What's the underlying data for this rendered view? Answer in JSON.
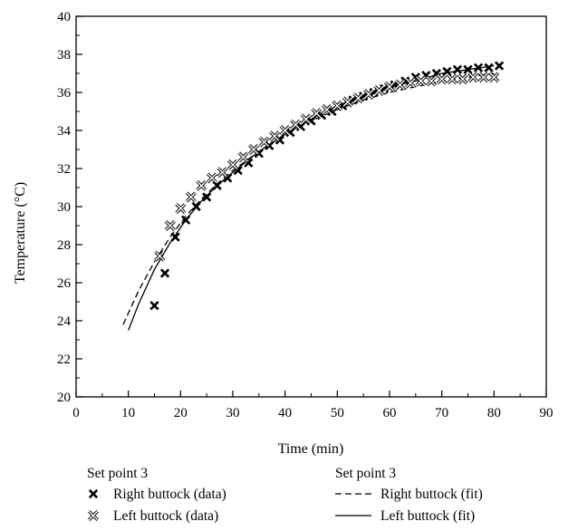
{
  "chart_data": {
    "type": "scatter",
    "xlabel": "Time (min)",
    "ylabel": "Temperature (°C)",
    "xlim": [
      0,
      90
    ],
    "ylim": [
      20,
      40
    ],
    "x_ticks": [
      "0",
      "10",
      "20",
      "30",
      "40",
      "50",
      "60",
      "70",
      "80",
      "90"
    ],
    "y_ticks": [
      "20",
      "22",
      "24",
      "26",
      "28",
      "30",
      "32",
      "34",
      "36",
      "38",
      "40"
    ],
    "grid": false,
    "legend_position": "bottom",
    "legend": {
      "left_title": "Set point 3",
      "right_title": "Set point 3"
    },
    "series": [
      {
        "name": "Right buttock (data)",
        "kind": "points",
        "marker": "bold-x",
        "x": [
          15,
          17,
          19,
          21,
          23,
          25,
          27,
          29,
          31,
          33,
          35,
          37,
          39,
          41,
          43,
          45,
          47,
          49,
          51,
          53,
          55,
          57,
          59,
          61,
          63,
          65,
          67,
          69,
          71,
          73,
          75,
          77,
          79,
          81
        ],
        "y": [
          24.8,
          26.5,
          28.4,
          29.3,
          30.0,
          30.5,
          31.1,
          31.5,
          31.9,
          32.3,
          32.8,
          33.2,
          33.5,
          33.9,
          34.2,
          34.5,
          34.8,
          35.0,
          35.3,
          35.6,
          35.8,
          36.0,
          36.2,
          36.4,
          36.6,
          36.8,
          36.9,
          37.0,
          37.1,
          37.2,
          37.2,
          37.3,
          37.3,
          37.4
        ]
      },
      {
        "name": "Left buttock (data)",
        "kind": "points",
        "marker": "hollow-x",
        "x": [
          16,
          18,
          20,
          22,
          24,
          26,
          28,
          30,
          32,
          34,
          36,
          38,
          40,
          42,
          44,
          46,
          48,
          50,
          52,
          54,
          56,
          58,
          60,
          62,
          64,
          66,
          68,
          70,
          72,
          74,
          76,
          78,
          80
        ],
        "y": [
          27.4,
          29.0,
          29.9,
          30.5,
          31.1,
          31.5,
          31.8,
          32.2,
          32.6,
          33.0,
          33.4,
          33.7,
          34.0,
          34.3,
          34.6,
          34.9,
          35.1,
          35.3,
          35.5,
          35.7,
          35.9,
          36.1,
          36.3,
          36.4,
          36.5,
          36.6,
          36.6,
          36.7,
          36.7,
          36.7,
          36.8,
          36.8,
          36.8
        ]
      },
      {
        "name": "Right buttock (fit)",
        "kind": "line",
        "dash": "dashed",
        "x": [
          9,
          12,
          15,
          18,
          21,
          24,
          27,
          30,
          35,
          40,
          45,
          50,
          55,
          60,
          65,
          70,
          75,
          80
        ],
        "y": [
          23.8,
          25.6,
          27.1,
          28.4,
          29.5,
          30.4,
          31.2,
          31.9,
          32.9,
          33.8,
          34.5,
          35.1,
          35.6,
          36.0,
          36.3,
          36.6,
          36.8,
          37.0
        ]
      },
      {
        "name": "Left buttock (fit)",
        "kind": "line",
        "dash": "solid",
        "x": [
          10,
          12,
          15,
          18,
          21,
          24,
          27,
          30,
          35,
          40,
          45,
          50,
          55,
          60,
          65,
          70,
          75,
          80
        ],
        "y": [
          23.5,
          24.9,
          26.7,
          28.1,
          29.3,
          30.3,
          31.1,
          31.8,
          32.9,
          33.8,
          34.6,
          35.3,
          35.8,
          36.3,
          36.6,
          37.0,
          37.2,
          37.4
        ]
      }
    ]
  }
}
